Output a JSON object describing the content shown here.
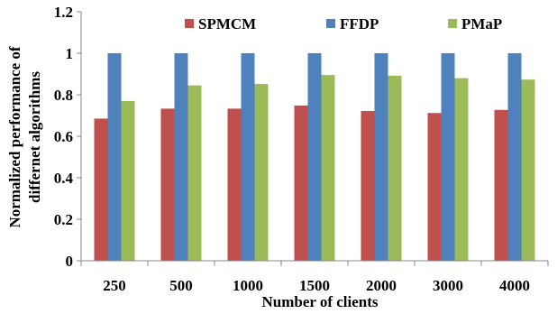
{
  "chart_data": {
    "type": "bar",
    "title": "",
    "xlabel": "Number of clients",
    "ylabel_lines": [
      "Normalized performance of",
      "differnet algorithms"
    ],
    "categories": [
      "250",
      "500",
      "1000",
      "1500",
      "2000",
      "3000",
      "4000"
    ],
    "ylim": [
      0,
      1.2
    ],
    "yticks": [
      "0",
      "0.2",
      "0.4",
      "0.6",
      "0.8",
      "1",
      "1.2"
    ],
    "grid": false,
    "legend_position": "top",
    "series": [
      {
        "name": "SPMCM",
        "color": "#C0504D",
        "values": [
          0.685,
          0.733,
          0.733,
          0.748,
          0.722,
          0.712,
          0.727
        ]
      },
      {
        "name": "FFDP",
        "color": "#4F81BD",
        "values": [
          1.0,
          1.0,
          1.0,
          1.0,
          1.0,
          1.0,
          1.0
        ]
      },
      {
        "name": "PMaP",
        "color": "#9BBB59",
        "values": [
          0.77,
          0.845,
          0.852,
          0.895,
          0.892,
          0.88,
          0.873
        ]
      }
    ]
  }
}
